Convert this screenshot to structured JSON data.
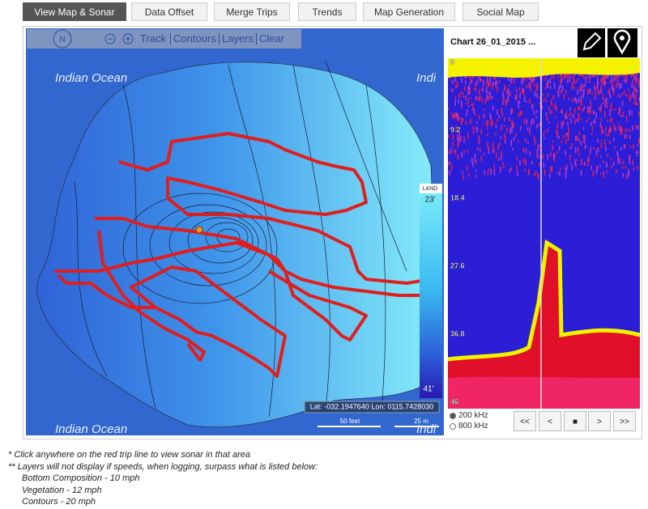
{
  "tabs": [
    "View Map & Sonar",
    "Data Offset",
    "Merge Trips",
    "Trends",
    "Map Generation",
    "Social Map"
  ],
  "map": {
    "toolbar": {
      "compass": "N",
      "links": [
        "Track",
        "Contours",
        "Layers",
        "Clear"
      ]
    },
    "labels": [
      "Indian Ocean",
      "Indi",
      "Indian Ocean",
      "Indi"
    ],
    "depth_legend": {
      "top_label": "LAND",
      "min": "23'",
      "max": "41'"
    },
    "coordinates": "Lat: -032.1947640 Lon: 0115.7428030",
    "scale": {
      "feet": "50 feet",
      "meters": "25 m"
    }
  },
  "sonar": {
    "title": "Chart 26_01_2015 ...",
    "depth_labels": [
      "0",
      "9.2",
      "18.4",
      "27.6",
      "36.8",
      "46"
    ],
    "frequencies": [
      "200 kHz",
      "800 kHz"
    ],
    "controls": [
      "<<",
      "<",
      "■",
      ">",
      ">>"
    ]
  },
  "notes": {
    "click": "* Click anywhere on the red trip line to view sonar in that area",
    "layers": "** Layers will not display if speeds, when logging, surpass what is listed below:",
    "limits": [
      "Bottom Composition - 10 mph",
      "Vegetation - 12 mph",
      "Contours - 20 mph"
    ]
  }
}
